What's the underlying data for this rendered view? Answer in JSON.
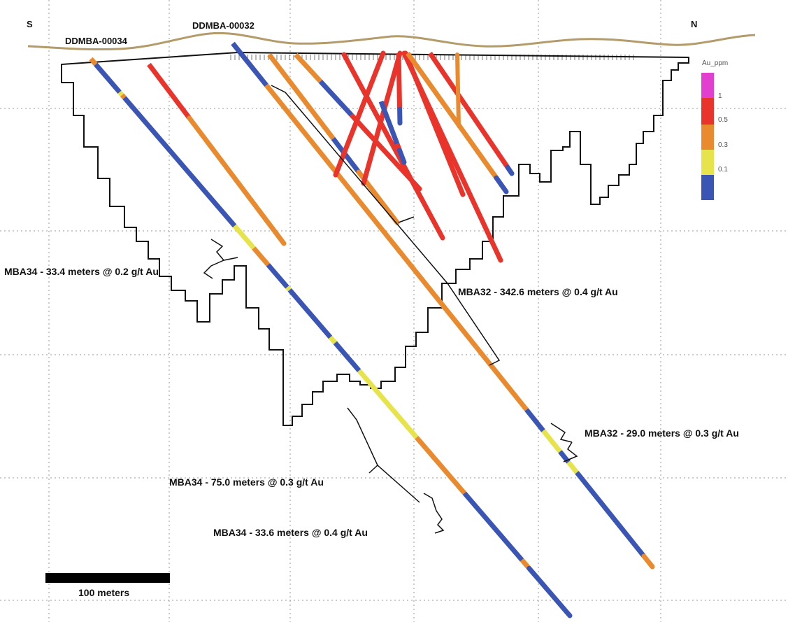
{
  "section": {
    "south_label": "S",
    "north_label": "N",
    "holes": {
      "hole_34": "DDMBA-00034",
      "hole_32": "DDMBA-00032"
    }
  },
  "legend": {
    "title": "Au_ppm",
    "ticks": [
      "1",
      "0.5",
      "0.3",
      "0.1"
    ],
    "colors": [
      "#e23fd0",
      "#e8342b",
      "#ea8a2f",
      "#e6e44a",
      "#3a55b4"
    ]
  },
  "intercepts": [
    {
      "id": "mba34-a",
      "text": "MBA34 - 33.4 meters @ 0.2 g/t Au"
    },
    {
      "id": "mba32-a",
      "text": "MBA32  - 342.6 meters @ 0.4 g/t Au"
    },
    {
      "id": "mba32-b",
      "text": "MBA32  - 29.0 meters @ 0.3 g/t Au"
    },
    {
      "id": "mba34-b",
      "text": "MBA34 - 75.0 meters @ 0.3 g/t Au"
    },
    {
      "id": "mba34-c",
      "text": "MBA34 - 33.6 meters @ 0.4 g/t Au"
    }
  ],
  "scale_bar": {
    "label": "100 meters"
  },
  "colors": {
    "topography": "#b39b6a",
    "pit_shell": "#111111",
    "grid": "#9a9a9a",
    "blue": "#3a55b4",
    "yellow": "#e6e44a",
    "orange": "#ea8a2f",
    "red": "#e8342b",
    "magenta": "#e23fd0"
  }
}
